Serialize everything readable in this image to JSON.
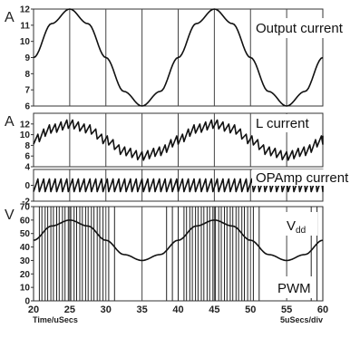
{
  "chart_data": [
    {
      "type": "line",
      "unit_label": "A",
      "label": "Output current",
      "ylim": [
        6,
        12
      ],
      "yticks": [
        6,
        7,
        8,
        9,
        10,
        11,
        12
      ],
      "x": [
        20,
        22.5,
        25,
        27.5,
        30,
        32.5,
        35,
        37.5,
        40,
        42.5,
        45,
        47.5,
        50,
        52.5,
        55,
        57.5,
        60
      ],
      "series": [
        {
          "values": [
            9,
            11.1,
            12,
            11.1,
            9,
            6.9,
            6,
            6.9,
            9,
            11.1,
            12,
            11.1,
            9,
            6.9,
            6,
            6.9,
            9
          ]
        }
      ]
    },
    {
      "type": "line",
      "unit_label": "A",
      "label": "L current",
      "ylim": [
        4,
        14
      ],
      "yticks": [
        4,
        6,
        8,
        10,
        12
      ],
      "x": [
        20,
        22.5,
        25,
        27.5,
        30,
        32.5,
        35,
        37.5,
        40,
        42.5,
        45,
        47.5,
        50,
        52.5,
        55,
        57.5,
        60
      ],
      "series": [
        {
          "values": [
            9,
            11.1,
            12,
            11.1,
            9,
            6.9,
            6,
            6.9,
            9,
            11.1,
            12,
            11.1,
            9,
            6.9,
            6,
            6.9,
            9
          ]
        }
      ],
      "ripple_amplitude": 0.8
    },
    {
      "type": "line",
      "label": "OPAmp current",
      "ylim": [
        -2,
        2
      ],
      "yticks": [
        0,
        -2
      ],
      "ripple_amplitude": 0.8
    },
    {
      "type": "line",
      "unit_label": "V",
      "label": "Vdd",
      "label_main": "V",
      "label_sub": "dd",
      "label_pwm": "PWM",
      "ylim": [
        0,
        70
      ],
      "yticks": [
        0,
        10,
        20,
        30,
        40,
        50,
        60,
        70
      ],
      "x": [
        20,
        22.5,
        25,
        27.5,
        30,
        32.5,
        35,
        37.5,
        40,
        42.5,
        45,
        47.5,
        50,
        52.5,
        55,
        57.5,
        60
      ],
      "series": [
        {
          "values": [
            45,
            55.6,
            60,
            55.6,
            45,
            34.4,
            30,
            34.4,
            45,
            55.6,
            60,
            55.6,
            45,
            34.4,
            30,
            34.4,
            45
          ]
        }
      ],
      "pwm_high": 70,
      "pwm_low": 0
    }
  ],
  "xaxis": {
    "range": [
      20,
      60
    ],
    "ticks": [
      20,
      25,
      30,
      35,
      40,
      45,
      50,
      55,
      60
    ],
    "xlabel": "Time/uSecs",
    "scale_label": "5uSecs/div"
  }
}
